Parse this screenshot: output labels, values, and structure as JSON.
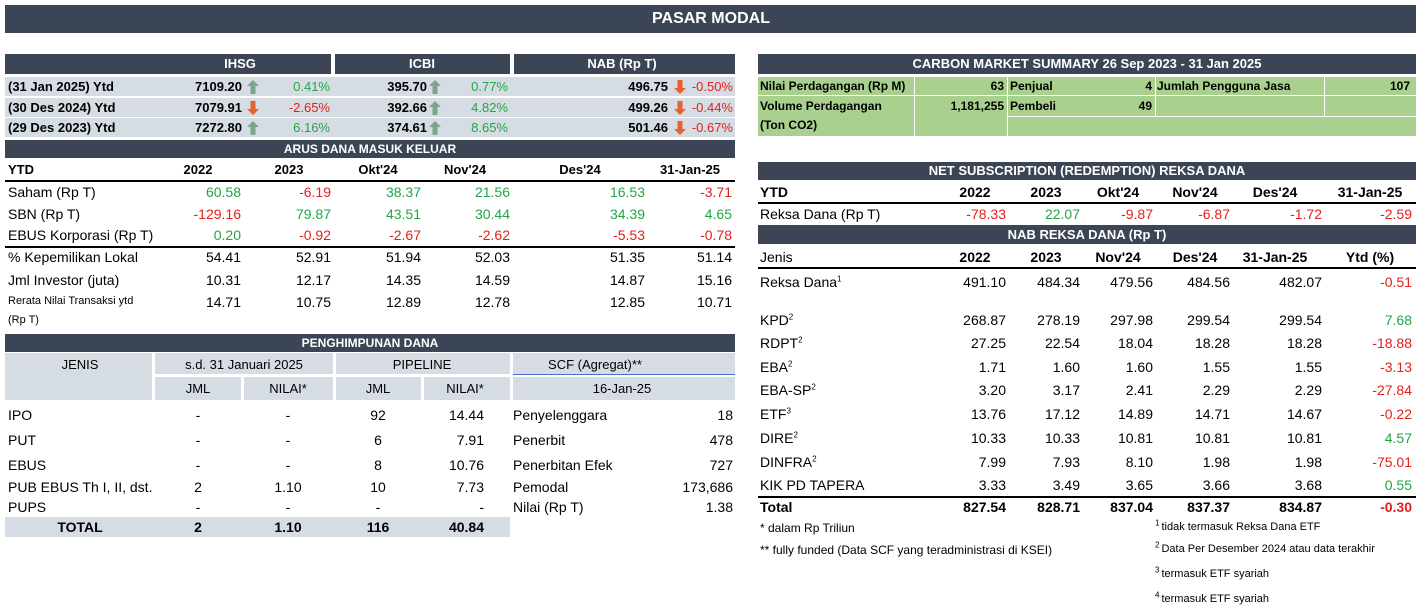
{
  "title": "PASAR MODAL",
  "index_table": {
    "headers": [
      "IHSG",
      "ICBI",
      "NAB (Rp T)"
    ],
    "rows": [
      {
        "label": "(31 Jan 2025) Ytd",
        "values": [
          "7109.20",
          "0.41%",
          "395.70",
          "0.77%",
          "496.75",
          "-0.50%"
        ]
      },
      {
        "label": "(30 Des 2024) Ytd",
        "values": [
          "7079.91",
          "-2.65%",
          "392.66",
          "4.82%",
          "499.26",
          "-0.44%"
        ]
      },
      {
        "label": "(29 Des 2023) Ytd",
        "values": [
          "7272.80",
          "6.16%",
          "374.61",
          "8.65%",
          "501.46",
          "-0.67%"
        ]
      }
    ]
  },
  "arus_dana": {
    "title": "ARUS DANA MASUK KELUAR",
    "header": [
      "YTD",
      "2022",
      "2023",
      "Okt'24",
      "Nov'24",
      "Des'24",
      "31-Jan-25"
    ],
    "rows": [
      [
        "Saham (Rp T)",
        "60.58",
        "-6.19",
        "38.37",
        "21.56",
        "16.53",
        "-3.71"
      ],
      [
        "SBN (Rp T)",
        "-129.16",
        "79.87",
        "43.51",
        "30.44",
        "34.39",
        "4.65"
      ],
      [
        "EBUS Korporasi (Rp T)",
        "0.20",
        "-0.92",
        "-2.67",
        "-2.62",
        "-5.53",
        "-0.78"
      ],
      [
        "% Kepemilikan Lokal",
        "54.41",
        "52.91",
        "51.94",
        "52.03",
        "51.35",
        "51.14"
      ],
      [
        "Jml Investor (juta)",
        "10.31",
        "12.17",
        "14.35",
        "14.59",
        "14.87",
        "15.16"
      ],
      [
        "Rerata Nilai Transaksi ytd (Rp T)",
        "14.71",
        "10.75",
        "12.89",
        "12.78",
        "12.85",
        "10.71"
      ]
    ]
  },
  "penghimpunan": {
    "title": "PENGHIMPUNAN DANA",
    "groups": [
      "JENIS",
      "s.d. 31 Januari 2025",
      "PIPELINE"
    ],
    "subheaders": [
      "JML",
      "NILAI*",
      "JML",
      "NILAI*"
    ],
    "rows": [
      {
        "label": "IPO",
        "values": [
          "-",
          "-",
          "92",
          "14.44"
        ]
      },
      {
        "label": "PUT",
        "values": [
          "-",
          "-",
          "6",
          "7.91"
        ]
      },
      {
        "label": "EBUS",
        "values": [
          "-",
          "-",
          "8",
          "10.76"
        ]
      },
      {
        "label": "PUB EBUS Th I, II, dst.",
        "values": [
          "2",
          "1.10",
          "10",
          "7.73"
        ]
      },
      {
        "label": "PUPS",
        "values": [
          "-",
          "-",
          "-",
          "-"
        ]
      }
    ],
    "total": {
      "label": "TOTAL",
      "values": [
        "2",
        "1.10",
        "116",
        "40.84"
      ]
    },
    "scf": {
      "header": "SCF (Agregat)**",
      "date": "16-Jan-25",
      "rows": [
        {
          "label": "Penyelenggara",
          "value": "18"
        },
        {
          "label": "Penerbit",
          "value": "478"
        },
        {
          "label": "Penerbitan Efek",
          "value": "727"
        },
        {
          "label": "Pemodal",
          "value": "173,686"
        },
        {
          "label": "Nilai (Rp T)",
          "value": "1.38"
        }
      ]
    }
  },
  "notes": [
    "* dalam Rp Triliun",
    "** fully funded (Data SCF yang teradministrasi di KSEI)"
  ],
  "carbon": {
    "title": "CARBON MARKET SUMMARY 26 Sep 2023 - 31 Jan 2025",
    "items": [
      {
        "label": "Nilai Perdagangan (Rp M)",
        "value": "63"
      },
      {
        "label": "Penjual",
        "value": "4"
      },
      {
        "label": "Jumlah Pengguna Jasa",
        "value": "107"
      },
      {
        "label": "Volume Perdagangan (Ton CO2)",
        "value": "1,181,255"
      },
      {
        "label": "Pembeli",
        "value": "49"
      }
    ]
  },
  "net_subscription": {
    "title": "NET SUBSCRIPTION (REDEMPTION) REKSA DANA",
    "header": [
      "YTD",
      "2022",
      "2023",
      "Okt'24",
      "Nov'24",
      "Des'24",
      "31-Jan-25"
    ],
    "row": [
      "Reksa Dana (Rp T)",
      "-78.33",
      "22.07",
      "-9.87",
      "-6.87",
      "-1.72",
      "-2.59"
    ]
  },
  "nab_reksa_dana": {
    "title": "NAB REKSA DANA (Rp T)",
    "header": [
      "Jenis",
      "2022",
      "2023",
      "Nov'24",
      "Des'24",
      "31-Jan-25",
      "Ytd (%)"
    ],
    "rows": [
      {
        "label": "Reksa Dana",
        "sup": "1",
        "values": [
          "491.10",
          "484.34",
          "479.56",
          "484.56",
          "482.07",
          "-0.51"
        ]
      },
      {
        "label": "KPD",
        "sup": "2",
        "values": [
          "268.87",
          "278.19",
          "297.98",
          "299.54",
          "299.54",
          "7.68"
        ]
      },
      {
        "label": "RDPT",
        "sup": "2",
        "values": [
          "27.25",
          "22.54",
          "18.04",
          "18.28",
          "18.28",
          "-18.88"
        ]
      },
      {
        "label": "EBA",
        "sup": "2",
        "values": [
          "1.71",
          "1.60",
          "1.60",
          "1.55",
          "1.55",
          "-3.13"
        ]
      },
      {
        "label": "EBA-SP",
        "sup": "2",
        "values": [
          "3.20",
          "3.17",
          "2.41",
          "2.29",
          "2.29",
          "-27.84"
        ]
      },
      {
        "label": "ETF",
        "sup": "3",
        "values": [
          "13.76",
          "17.12",
          "14.89",
          "14.71",
          "14.67",
          "-0.22"
        ]
      },
      {
        "label": "DIRE",
        "sup": "2",
        "values": [
          "10.33",
          "10.33",
          "10.81",
          "10.81",
          "10.81",
          "4.57"
        ]
      },
      {
        "label": "DINFRA",
        "sup": "2",
        "values": [
          "7.99",
          "7.93",
          "8.10",
          "1.98",
          "1.98",
          "-75.01"
        ]
      },
      {
        "label": "KIK PD TAPERA",
        "values": [
          "3.33",
          "3.49",
          "3.65",
          "3.66",
          "3.68",
          "0.55"
        ]
      }
    ],
    "total": {
      "label": "Total",
      "values": [
        "827.54",
        "828.71",
        "837.04",
        "837.37",
        "834.87",
        "-0.30"
      ]
    }
  },
  "footnotes": [
    {
      "mark": "1",
      "text": "tidak termasuk Reksa Dana ETF"
    },
    {
      "mark": "2",
      "text": "Data Per Desember 2024 atau data terakhir"
    },
    {
      "mark": "3",
      "text": "termasuk ETF syariah"
    },
    {
      "mark": "4",
      "text": "termasuk ETF syariah"
    }
  ]
}
